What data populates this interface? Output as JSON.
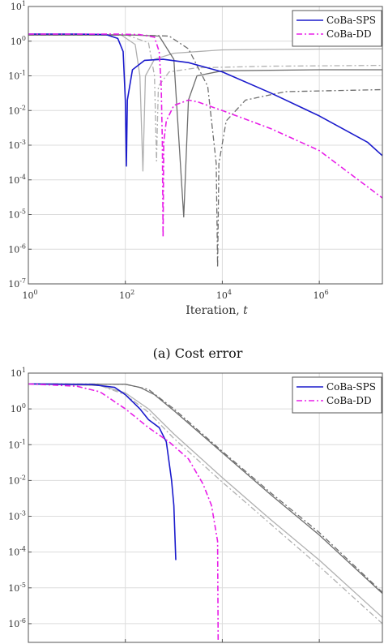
{
  "figure_caption": "(a)  Cost error",
  "legend_labels": [
    "CoBa-SPS",
    "CoBa-DD"
  ],
  "chart_data": [
    {
      "type": "line",
      "title": "",
      "caption": "(a)  Cost error",
      "xlabel": "Iteration, t",
      "ylabel": "",
      "xscale": "log",
      "yscale": "log",
      "xlim": [
        1,
        20000000
      ],
      "ylim": [
        1e-07,
        10
      ],
      "xticks": [
        1,
        100,
        10000,
        1000000
      ],
      "xtick_labels": [
        "10^0",
        "10^2",
        "10^4",
        "10^6"
      ],
      "yticks": [
        1e-07,
        1e-06,
        1e-05,
        0.0001,
        0.001,
        0.01,
        0.1,
        1,
        10
      ],
      "ytick_labels": [
        "10^-7",
        "10^-6",
        "10^-5",
        "10^-4",
        "10^-3",
        "10^-2",
        "10^-1",
        "10^0",
        "10^1"
      ],
      "grid": true,
      "legend_position": "top-right",
      "series": [
        {
          "name": "CoBa-SPS",
          "color": "#1a1acc",
          "dash": "solid",
          "points": [
            [
              1,
              1.6
            ],
            [
              10,
              1.6
            ],
            [
              40,
              1.55
            ],
            [
              70,
              1.2
            ],
            [
              90,
              0.5
            ],
            [
              100,
              0.02
            ],
            [
              105,
              0.00025
            ],
            [
              110,
              0.02
            ],
            [
              140,
              0.15
            ],
            [
              250,
              0.28
            ],
            [
              600,
              0.3
            ],
            [
              2000,
              0.24
            ],
            [
              10000,
              0.13
            ],
            [
              100000,
              0.032
            ],
            [
              1000000,
              0.007
            ],
            [
              10000000,
              0.0012
            ],
            [
              20000000,
              0.0005
            ]
          ]
        },
        {
          "name": "CoBa-DD",
          "color": "#e81ee8",
          "dash": "dashdot",
          "points": [
            [
              1,
              1.6
            ],
            [
              60,
              1.6
            ],
            [
              200,
              1.55
            ],
            [
              400,
              1.3
            ],
            [
              500,
              0.5
            ],
            [
              550,
              0.05
            ],
            [
              580,
              0.0012
            ],
            [
              600,
              2.2e-06
            ],
            [
              620,
              0.0012
            ],
            [
              700,
              0.005
            ],
            [
              1000,
              0.014
            ],
            [
              2000,
              0.02
            ],
            [
              3000,
              0.018
            ],
            [
              10000,
              0.01
            ],
            [
              100000,
              0.003
            ],
            [
              1000000,
              0.0007
            ],
            [
              20000000,
              3e-05
            ]
          ]
        },
        {
          "color": "#b0b0b0",
          "dash": "solid",
          "points": [
            [
              1,
              1.6
            ],
            [
              80,
              1.55
            ],
            [
              160,
              0.8
            ],
            [
              200,
              0.1
            ],
            [
              230,
              0.00018
            ],
            [
              260,
              0.1
            ],
            [
              400,
              0.3
            ],
            [
              1000,
              0.45
            ],
            [
              10000,
              0.56
            ],
            [
              1000000,
              0.59
            ],
            [
              20000000,
              0.6
            ]
          ]
        },
        {
          "color": "#b0b0b0",
          "dash": "dashdot",
          "points": [
            [
              1,
              1.6
            ],
            [
              100,
              1.55
            ],
            [
              300,
              0.9
            ],
            [
              400,
              0.1
            ],
            [
              440,
              0.00035
            ],
            [
              480,
              0.05
            ],
            [
              800,
              0.13
            ],
            [
              3000,
              0.17
            ],
            [
              100000,
              0.19
            ],
            [
              20000000,
              0.2
            ]
          ]
        },
        {
          "color": "#6e6e6e",
          "dash": "solid",
          "points": [
            [
              1,
              1.5
            ],
            [
              150,
              1.5
            ],
            [
              500,
              1.4
            ],
            [
              1000,
              0.3
            ],
            [
              1600,
              8.5e-06
            ],
            [
              2000,
              0.02
            ],
            [
              3000,
              0.1
            ],
            [
              10000,
              0.14
            ],
            [
              1000000,
              0.15
            ],
            [
              20000000,
              0.15
            ]
          ]
        },
        {
          "color": "#6e6e6e",
          "dash": "dashdot",
          "points": [
            [
              1,
              1.5
            ],
            [
              200,
              1.5
            ],
            [
              800,
              1.4
            ],
            [
              2000,
              0.6
            ],
            [
              5000,
              0.05
            ],
            [
              7500,
              0.0003
            ],
            [
              8000,
              3e-07
            ],
            [
              8500,
              0.0003
            ],
            [
              12000,
              0.005
            ],
            [
              30000,
              0.02
            ],
            [
              200000,
              0.035
            ],
            [
              20000000,
              0.04
            ]
          ]
        }
      ]
    },
    {
      "type": "line",
      "title": "",
      "xlabel": "",
      "ylabel": "",
      "xscale": "log",
      "yscale": "log",
      "xlim": [
        1,
        20000000
      ],
      "ylim": [
        3e-07,
        10
      ],
      "xticks": [
        1,
        100,
        10000,
        1000000
      ],
      "yticks": [
        1e-06,
        1e-05,
        0.0001,
        0.001,
        0.01,
        0.1,
        1,
        10
      ],
      "ytick_labels": [
        "10^-6",
        "10^-5",
        "10^-4",
        "10^-3",
        "10^-2",
        "10^-1",
        "10^0",
        "10^1"
      ],
      "grid": true,
      "legend_position": "top-right",
      "series": [
        {
          "name": "CoBa-SPS",
          "color": "#1a1acc",
          "dash": "solid",
          "points": [
            [
              1,
              5
            ],
            [
              20,
              4.8
            ],
            [
              60,
              4
            ],
            [
              100,
              2.5
            ],
            [
              200,
              1
            ],
            [
              300,
              0.5
            ],
            [
              500,
              0.3
            ],
            [
              700,
              0.12
            ],
            [
              900,
              0.01
            ],
            [
              1000,
              0.002
            ],
            [
              1100,
              6e-05
            ]
          ]
        },
        {
          "name": "CoBa-DD",
          "color": "#e81ee8",
          "dash": "dashdot",
          "points": [
            [
              1,
              5
            ],
            [
              10,
              4.3
            ],
            [
              30,
              3
            ],
            [
              100,
              1
            ],
            [
              300,
              0.3
            ],
            [
              800,
              0.12
            ],
            [
              2000,
              0.04
            ],
            [
              4000,
              0.008
            ],
            [
              6000,
              0.002
            ],
            [
              8000,
              0.0002
            ],
            [
              8200,
              3e-07
            ]
          ]
        },
        {
          "color": "#b0b0b0",
          "dash": "solid",
          "points": [
            [
              1,
              5
            ],
            [
              30,
              4.5
            ],
            [
              100,
              2.8
            ],
            [
              300,
              1
            ],
            [
              1000,
              0.2
            ],
            [
              10000,
              0.012
            ],
            [
              100000,
              0.0008
            ],
            [
              1000000,
              6e-05
            ],
            [
              20000000,
              1.5e-06
            ]
          ]
        },
        {
          "color": "#b0b0b0",
          "dash": "dashdot",
          "points": [
            [
              1,
              5
            ],
            [
              30,
              4.5
            ],
            [
              100,
              2.5
            ],
            [
              300,
              0.8
            ],
            [
              1000,
              0.15
            ],
            [
              10000,
              0.009
            ],
            [
              100000,
              0.0006
            ],
            [
              1000000,
              4e-05
            ],
            [
              20000000,
              1e-06
            ]
          ]
        },
        {
          "color": "#6e6e6e",
          "dash": "solid",
          "points": [
            [
              1,
              5
            ],
            [
              100,
              4.9
            ],
            [
              200,
              4
            ],
            [
              400,
              2.5
            ],
            [
              1000,
              0.9
            ],
            [
              10000,
              0.06
            ],
            [
              100000,
              0.004
            ],
            [
              1000000,
              0.0003
            ],
            [
              20000000,
              7e-06
            ]
          ]
        },
        {
          "color": "#6e6e6e",
          "dash": "dashdot",
          "points": [
            [
              1,
              5
            ],
            [
              100,
              4.9
            ],
            [
              300,
              3.5
            ],
            [
              1000,
              1
            ],
            [
              10000,
              0.065
            ],
            [
              100000,
              0.0045
            ],
            [
              1000000,
              0.00035
            ],
            [
              20000000,
              7.5e-06
            ]
          ]
        }
      ]
    }
  ]
}
